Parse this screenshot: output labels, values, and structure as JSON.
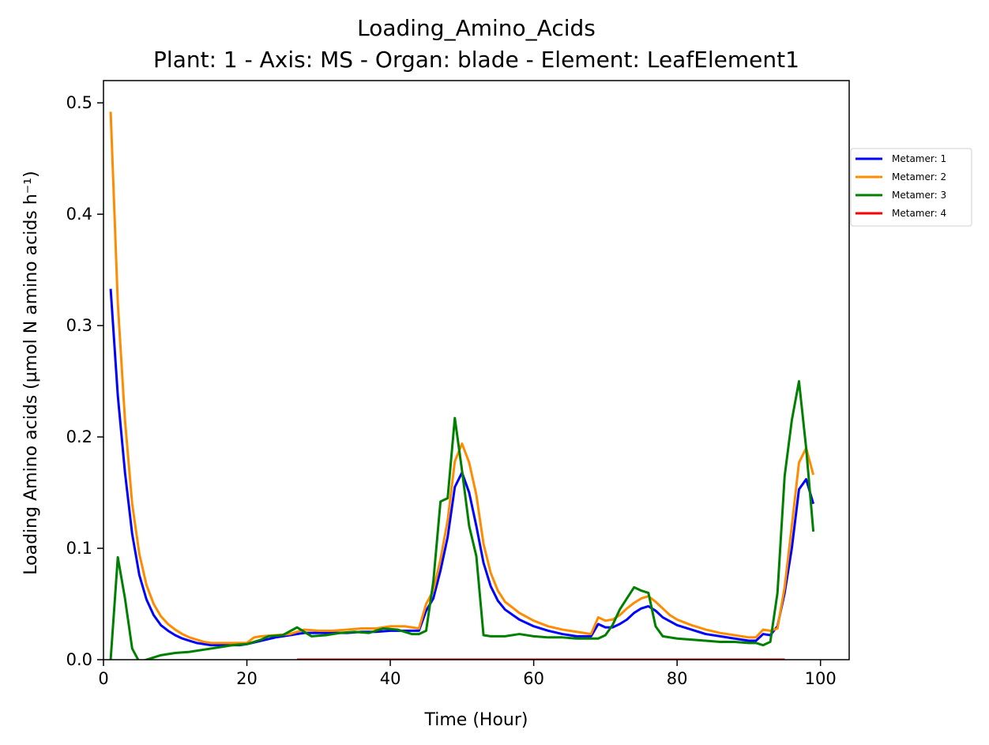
{
  "chart_data": {
    "type": "line",
    "title": "Loading_Amino_Acids",
    "subtitle": "Plant: 1 - Axis: MS - Organ: blade - Element: LeafElement1",
    "xlabel": "Time (Hour)",
    "ylabel": "Loading Amino acids (µmol N amino acids h⁻¹)",
    "xlim": [
      0,
      104
    ],
    "ylim": [
      0,
      0.52
    ],
    "xticks": [
      0,
      20,
      40,
      60,
      80,
      100
    ],
    "xtick_labels": [
      "0",
      "20",
      "40",
      "60",
      "80",
      "100"
    ],
    "yticks": [
      0.0,
      0.1,
      0.2,
      0.3,
      0.4,
      0.5
    ],
    "ytick_labels": [
      "0.0",
      "0.1",
      "0.2",
      "0.3",
      "0.4",
      "0.5"
    ],
    "grid": false,
    "legend_position": "outside-right",
    "series": [
      {
        "name": "Metamer: 1",
        "color": "#0000ff",
        "points": [
          [
            1,
            0.333
          ],
          [
            2,
            0.237
          ],
          [
            3,
            0.168
          ],
          [
            4,
            0.113
          ],
          [
            5,
            0.076
          ],
          [
            6,
            0.054
          ],
          [
            7,
            0.04
          ],
          [
            8,
            0.031
          ],
          [
            9,
            0.026
          ],
          [
            10,
            0.022
          ],
          [
            11,
            0.019
          ],
          [
            12,
            0.017
          ],
          [
            13,
            0.015
          ],
          [
            14,
            0.014
          ],
          [
            15,
            0.013
          ],
          [
            16,
            0.013
          ],
          [
            17,
            0.013
          ],
          [
            18,
            0.013
          ],
          [
            19,
            0.013
          ],
          [
            20,
            0.014
          ],
          [
            22,
            0.017
          ],
          [
            24,
            0.02
          ],
          [
            26,
            0.022
          ],
          [
            28,
            0.024
          ],
          [
            30,
            0.024
          ],
          [
            32,
            0.024
          ],
          [
            34,
            0.024
          ],
          [
            36,
            0.025
          ],
          [
            38,
            0.025
          ],
          [
            40,
            0.026
          ],
          [
            42,
            0.026
          ],
          [
            44,
            0.026
          ],
          [
            45,
            0.044
          ],
          [
            46,
            0.055
          ],
          [
            47,
            0.08
          ],
          [
            48,
            0.11
          ],
          [
            49,
            0.155
          ],
          [
            50,
            0.168
          ],
          [
            51,
            0.15
          ],
          [
            52,
            0.12
          ],
          [
            53,
            0.087
          ],
          [
            54,
            0.066
          ],
          [
            55,
            0.053
          ],
          [
            56,
            0.045
          ],
          [
            58,
            0.036
          ],
          [
            60,
            0.03
          ],
          [
            62,
            0.026
          ],
          [
            64,
            0.023
          ],
          [
            66,
            0.021
          ],
          [
            68,
            0.021
          ],
          [
            69,
            0.032
          ],
          [
            70,
            0.029
          ],
          [
            71,
            0.029
          ],
          [
            72,
            0.032
          ],
          [
            73,
            0.036
          ],
          [
            74,
            0.042
          ],
          [
            75,
            0.046
          ],
          [
            76,
            0.048
          ],
          [
            77,
            0.044
          ],
          [
            78,
            0.038
          ],
          [
            80,
            0.031
          ],
          [
            82,
            0.027
          ],
          [
            84,
            0.023
          ],
          [
            86,
            0.021
          ],
          [
            88,
            0.019
          ],
          [
            90,
            0.017
          ],
          [
            91,
            0.017
          ],
          [
            92,
            0.023
          ],
          [
            93,
            0.022
          ],
          [
            94,
            0.03
          ],
          [
            95,
            0.06
          ],
          [
            96,
            0.1
          ],
          [
            97,
            0.153
          ],
          [
            98,
            0.162
          ],
          [
            99,
            0.14
          ]
        ]
      },
      {
        "name": "Metamer: 2",
        "color": "#ff8c00",
        "points": [
          [
            1,
            0.492
          ],
          [
            2,
            0.32
          ],
          [
            3,
            0.215
          ],
          [
            4,
            0.14
          ],
          [
            5,
            0.095
          ],
          [
            6,
            0.067
          ],
          [
            7,
            0.05
          ],
          [
            8,
            0.039
          ],
          [
            9,
            0.032
          ],
          [
            10,
            0.027
          ],
          [
            11,
            0.023
          ],
          [
            12,
            0.02
          ],
          [
            13,
            0.018
          ],
          [
            14,
            0.016
          ],
          [
            15,
            0.015
          ],
          [
            16,
            0.015
          ],
          [
            17,
            0.015
          ],
          [
            18,
            0.015
          ],
          [
            19,
            0.015
          ],
          [
            20,
            0.015
          ],
          [
            21,
            0.02
          ],
          [
            22,
            0.021
          ],
          [
            24,
            0.022
          ],
          [
            26,
            0.023
          ],
          [
            28,
            0.027
          ],
          [
            30,
            0.026
          ],
          [
            32,
            0.026
          ],
          [
            34,
            0.027
          ],
          [
            36,
            0.028
          ],
          [
            38,
            0.028
          ],
          [
            40,
            0.03
          ],
          [
            42,
            0.03
          ],
          [
            44,
            0.028
          ],
          [
            45,
            0.05
          ],
          [
            46,
            0.062
          ],
          [
            47,
            0.09
          ],
          [
            48,
            0.125
          ],
          [
            49,
            0.178
          ],
          [
            50,
            0.194
          ],
          [
            51,
            0.177
          ],
          [
            52,
            0.148
          ],
          [
            53,
            0.104
          ],
          [
            54,
            0.078
          ],
          [
            55,
            0.062
          ],
          [
            56,
            0.052
          ],
          [
            58,
            0.042
          ],
          [
            60,
            0.035
          ],
          [
            62,
            0.03
          ],
          [
            64,
            0.027
          ],
          [
            66,
            0.025
          ],
          [
            68,
            0.023
          ],
          [
            69,
            0.038
          ],
          [
            70,
            0.035
          ],
          [
            71,
            0.036
          ],
          [
            72,
            0.04
          ],
          [
            73,
            0.046
          ],
          [
            74,
            0.051
          ],
          [
            75,
            0.055
          ],
          [
            76,
            0.057
          ],
          [
            77,
            0.052
          ],
          [
            78,
            0.046
          ],
          [
            79,
            0.04
          ],
          [
            80,
            0.036
          ],
          [
            82,
            0.031
          ],
          [
            84,
            0.027
          ],
          [
            86,
            0.024
          ],
          [
            88,
            0.022
          ],
          [
            90,
            0.02
          ],
          [
            91,
            0.02
          ],
          [
            92,
            0.027
          ],
          [
            93,
            0.026
          ],
          [
            94,
            0.028
          ],
          [
            95,
            0.065
          ],
          [
            96,
            0.12
          ],
          [
            97,
            0.177
          ],
          [
            98,
            0.19
          ],
          [
            99,
            0.166
          ]
        ]
      },
      {
        "name": "Metamer: 3",
        "color": "#008000",
        "points": [
          [
            1,
            0.0
          ],
          [
            2,
            0.092
          ],
          [
            3,
            0.055
          ],
          [
            4,
            0.01
          ],
          [
            5,
            -0.002
          ],
          [
            6,
            0.0
          ],
          [
            7,
            0.002
          ],
          [
            8,
            0.004
          ],
          [
            10,
            0.006
          ],
          [
            12,
            0.007
          ],
          [
            14,
            0.009
          ],
          [
            16,
            0.011
          ],
          [
            18,
            0.013
          ],
          [
            20,
            0.014
          ],
          [
            22,
            0.018
          ],
          [
            23,
            0.021
          ],
          [
            25,
            0.022
          ],
          [
            27,
            0.029
          ],
          [
            29,
            0.021
          ],
          [
            31,
            0.022
          ],
          [
            33,
            0.024
          ],
          [
            35,
            0.025
          ],
          [
            37,
            0.024
          ],
          [
            39,
            0.028
          ],
          [
            41,
            0.027
          ],
          [
            43,
            0.023
          ],
          [
            44,
            0.023
          ],
          [
            45,
            0.026
          ],
          [
            46,
            0.07
          ],
          [
            47,
            0.142
          ],
          [
            48,
            0.145
          ],
          [
            49,
            0.217
          ],
          [
            50,
            0.17
          ],
          [
            51,
            0.12
          ],
          [
            52,
            0.093
          ],
          [
            53,
            0.022
          ],
          [
            54,
            0.021
          ],
          [
            56,
            0.021
          ],
          [
            58,
            0.023
          ],
          [
            60,
            0.021
          ],
          [
            62,
            0.02
          ],
          [
            64,
            0.02
          ],
          [
            66,
            0.019
          ],
          [
            68,
            0.019
          ],
          [
            69,
            0.019
          ],
          [
            70,
            0.022
          ],
          [
            71,
            0.031
          ],
          [
            72,
            0.045
          ],
          [
            73,
            0.055
          ],
          [
            74,
            0.065
          ],
          [
            75,
            0.062
          ],
          [
            76,
            0.06
          ],
          [
            77,
            0.03
          ],
          [
            78,
            0.021
          ],
          [
            80,
            0.019
          ],
          [
            82,
            0.018
          ],
          [
            84,
            0.017
          ],
          [
            86,
            0.016
          ],
          [
            88,
            0.016
          ],
          [
            90,
            0.015
          ],
          [
            91,
            0.015
          ],
          [
            92,
            0.013
          ],
          [
            93,
            0.016
          ],
          [
            94,
            0.06
          ],
          [
            95,
            0.165
          ],
          [
            96,
            0.215
          ],
          [
            97,
            0.25
          ],
          [
            98,
            0.19
          ],
          [
            99,
            0.115
          ]
        ]
      },
      {
        "name": "Metamer: 4",
        "color": "#ff0000",
        "points": [
          [
            27,
            0.0
          ],
          [
            40,
            0.0
          ],
          [
            60,
            0.0
          ],
          [
            80,
            0.0
          ],
          [
            95,
            0.0
          ]
        ]
      }
    ]
  }
}
